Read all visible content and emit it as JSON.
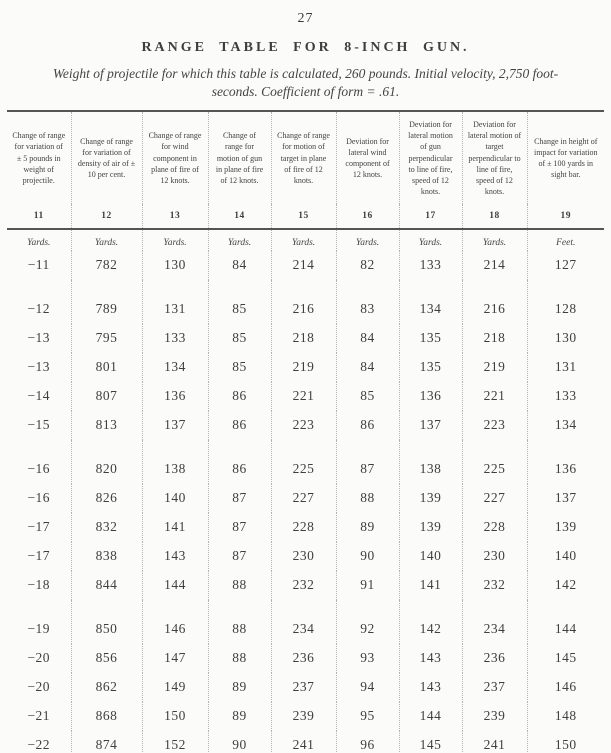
{
  "page": {
    "number": "27",
    "title": "RANGE TABLE FOR 8-INCH GUN.",
    "subtitle_line1": "Weight of projectile for which this table is calculated, 260 pounds.  Initial velocity, 2,750 foot-",
    "subtitle_line2": "seconds.  Coefficient of form = .61.",
    "ink_color": "#3c3b39",
    "paper_color": "#fbfbf9"
  },
  "table": {
    "columns": [
      {
        "number": "11",
        "header": "Change of range for variation of ± 5 pounds in weight of projectile.",
        "unit": "Yards."
      },
      {
        "number": "12",
        "header": "Change of range for variation of density of air of ± 10 per cent.",
        "unit": "Yards."
      },
      {
        "number": "13",
        "header": "Change of range for wind component in plane of fire of 12 knots.",
        "unit": "Yards."
      },
      {
        "number": "14",
        "header": "Change of range for motion of gun in plane of fire of 12 knots.",
        "unit": "Yards."
      },
      {
        "number": "15",
        "header": "Change of range for motion of target in plane of fire of 12 knots.",
        "unit": "Yards."
      },
      {
        "number": "16",
        "header": "Deviation for lateral wind component of 12 knots.",
        "unit": "Yards."
      },
      {
        "number": "17",
        "header": "Deviation for lateral motion of gun perpendicular to line of fire, speed of 12 knots.",
        "unit": "Yards."
      },
      {
        "number": "18",
        "header": "Deviation for lateral motion of target perpendicular to line of fire, speed of 12 knots.",
        "unit": "Yards."
      },
      {
        "number": "19",
        "header": "Change in height of impact for variation of ± 100 yards in sight bar.",
        "unit": "Feet."
      }
    ],
    "row_groups": [
      [
        [
          "−11",
          "782",
          "130",
          "84",
          "214",
          "82",
          "133",
          "214",
          "127"
        ]
      ],
      [
        [
          "−12",
          "789",
          "131",
          "85",
          "216",
          "83",
          "134",
          "216",
          "128"
        ],
        [
          "−13",
          "795",
          "133",
          "85",
          "218",
          "84",
          "135",
          "218",
          "130"
        ],
        [
          "−13",
          "801",
          "134",
          "85",
          "219",
          "84",
          "135",
          "219",
          "131"
        ],
        [
          "−14",
          "807",
          "136",
          "86",
          "221",
          "85",
          "136",
          "221",
          "133"
        ],
        [
          "−15",
          "813",
          "137",
          "86",
          "223",
          "86",
          "137",
          "223",
          "134"
        ]
      ],
      [
        [
          "−16",
          "820",
          "138",
          "86",
          "225",
          "87",
          "138",
          "225",
          "136"
        ],
        [
          "−16",
          "826",
          "140",
          "87",
          "227",
          "88",
          "139",
          "227",
          "137"
        ],
        [
          "−17",
          "832",
          "141",
          "87",
          "228",
          "89",
          "139",
          "228",
          "139"
        ],
        [
          "−17",
          "838",
          "143",
          "87",
          "230",
          "90",
          "140",
          "230",
          "140"
        ],
        [
          "−18",
          "844",
          "144",
          "88",
          "232",
          "91",
          "141",
          "232",
          "142"
        ]
      ],
      [
        [
          "−19",
          "850",
          "146",
          "88",
          "234",
          "92",
          "142",
          "234",
          "144"
        ],
        [
          "−20",
          "856",
          "147",
          "88",
          "236",
          "93",
          "143",
          "236",
          "145"
        ],
        [
          "−20",
          "862",
          "149",
          "89",
          "237",
          "94",
          "143",
          "237",
          "146"
        ],
        [
          "−21",
          "868",
          "150",
          "89",
          "239",
          "95",
          "144",
          "239",
          "148"
        ],
        [
          "−22",
          "874",
          "152",
          "90",
          "241",
          "96",
          "145",
          "241",
          "150"
        ]
      ]
    ]
  }
}
